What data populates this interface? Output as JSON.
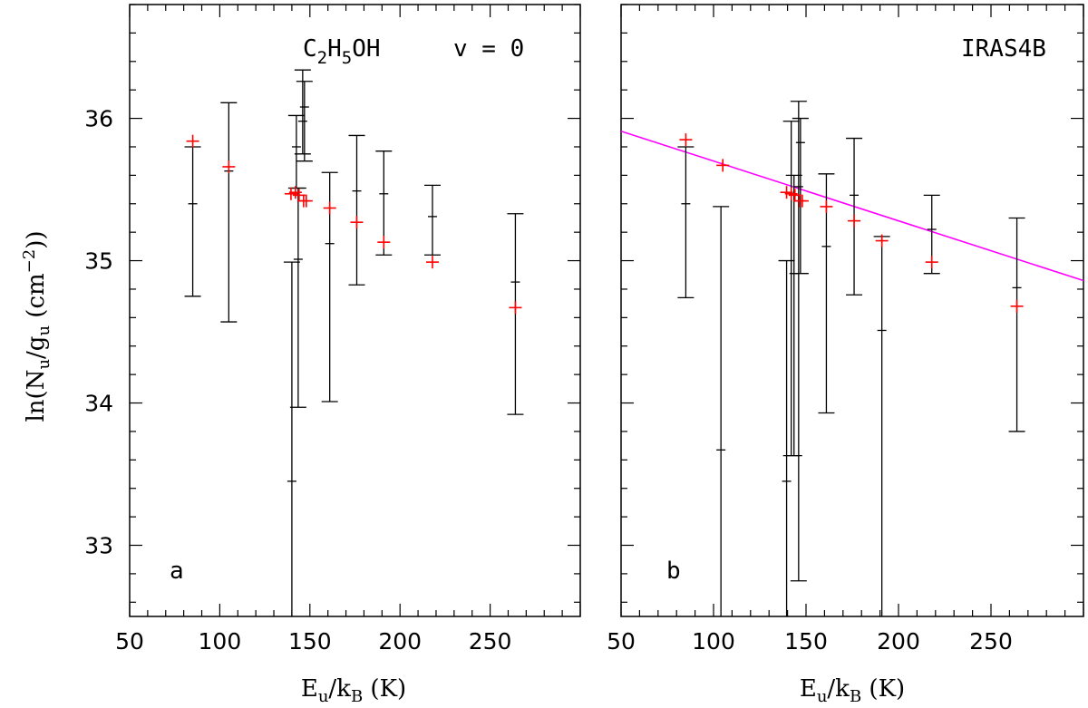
{
  "chart_data": [
    {
      "type": "scatter",
      "panel_letter": "a",
      "annotation_molecule": "C2H5OH",
      "annotation_state": "v = 0",
      "xlabel": "Eu/kB (K)",
      "ylabel": "ln(Nu/gu (cm^-2))",
      "xlim": [
        50,
        300
      ],
      "ylim": [
        32.5,
        36.8
      ],
      "xticks": [
        50,
        100,
        150,
        200,
        250
      ],
      "yticks": [
        33,
        34,
        35,
        36
      ],
      "observed": [
        {
          "x": 85,
          "y": 35.4,
          "lo": 34.75,
          "hi": 35.8
        },
        {
          "x": 105,
          "y": 35.63,
          "lo": 34.57,
          "hi": 36.11
        },
        {
          "x": 140,
          "y": 33.45,
          "lo": 32.5,
          "hi": 34.99
        },
        {
          "x": 142.5,
          "y": 35.8,
          "lo": 35.51,
          "hi": 36.02
        },
        {
          "x": 143.5,
          "y": 35.01,
          "lo": 33.97,
          "hi": 35.51
        },
        {
          "x": 146,
          "y": 35.98,
          "lo": 35.75,
          "hi": 36.34
        },
        {
          "x": 147,
          "y": 36.08,
          "lo": 35.7,
          "hi": 36.26
        },
        {
          "x": 161,
          "y": 35.12,
          "lo": 34.01,
          "hi": 35.62
        },
        {
          "x": 176,
          "y": 35.49,
          "lo": 34.83,
          "hi": 35.88
        },
        {
          "x": 191,
          "y": 35.47,
          "lo": 35.04,
          "hi": 35.77
        },
        {
          "x": 218,
          "y": 35.31,
          "lo": 35.04,
          "hi": 35.53
        },
        {
          "x": 264,
          "y": 34.85,
          "lo": 33.92,
          "hi": 35.33
        }
      ],
      "model": [
        {
          "x": 85,
          "y": 35.84
        },
        {
          "x": 105,
          "y": 35.66
        },
        {
          "x": 139.5,
          "y": 35.47
        },
        {
          "x": 142,
          "y": 35.48
        },
        {
          "x": 144,
          "y": 35.46
        },
        {
          "x": 146.5,
          "y": 35.42
        },
        {
          "x": 148,
          "y": 35.42
        },
        {
          "x": 161,
          "y": 35.37
        },
        {
          "x": 176,
          "y": 35.27
        },
        {
          "x": 191,
          "y": 35.13
        },
        {
          "x": 218,
          "y": 34.99
        },
        {
          "x": 264,
          "y": 34.67
        }
      ]
    },
    {
      "type": "scatter",
      "panel_letter": "b",
      "annotation_source": "IRAS4B",
      "xlabel": "Eu/kB (K)",
      "xlim": [
        50,
        300
      ],
      "ylim": [
        32.5,
        36.8
      ],
      "xticks": [
        50,
        100,
        150,
        200,
        250
      ],
      "yticks": [
        33,
        34,
        35,
        36
      ],
      "fit_line": {
        "x0": 50,
        "y0": 35.91,
        "x1": 300,
        "y1": 34.86
      },
      "observed": [
        {
          "x": 85,
          "y": 35.4,
          "lo": 34.74,
          "hi": 35.8
        },
        {
          "x": 104,
          "y": 33.67,
          "lo": 32.5,
          "hi": 35.38
        },
        {
          "x": 139.5,
          "y": 33.45,
          "lo": 32.5,
          "hi": 35.0
        },
        {
          "x": 142,
          "y": 35.47,
          "lo": 33.63,
          "hi": 35.98
        },
        {
          "x": 143.5,
          "y": 34.91,
          "lo": 33.63,
          "hi": 35.6
        },
        {
          "x": 146,
          "y": 35.52,
          "lo": 32.75,
          "hi": 36.12
        },
        {
          "x": 147,
          "y": 35.83,
          "lo": 34.91,
          "hi": 36.0
        },
        {
          "x": 161,
          "y": 35.1,
          "lo": 33.93,
          "hi": 35.61
        },
        {
          "x": 176,
          "y": 35.46,
          "lo": 34.76,
          "hi": 35.86
        },
        {
          "x": 191,
          "y": 34.51,
          "lo": 32.5,
          "hi": 35.17
        },
        {
          "x": 218,
          "y": 35.22,
          "lo": 34.91,
          "hi": 35.46
        },
        {
          "x": 264,
          "y": 34.81,
          "lo": 33.8,
          "hi": 35.3
        }
      ],
      "model": [
        {
          "x": 85,
          "y": 35.85
        },
        {
          "x": 105,
          "y": 35.67
        },
        {
          "x": 139.5,
          "y": 35.48
        },
        {
          "x": 142,
          "y": 35.47
        },
        {
          "x": 144,
          "y": 35.46
        },
        {
          "x": 146.5,
          "y": 35.42
        },
        {
          "x": 148,
          "y": 35.42
        },
        {
          "x": 161,
          "y": 35.38
        },
        {
          "x": 176,
          "y": 35.28
        },
        {
          "x": 191,
          "y": 35.14
        },
        {
          "x": 218,
          "y": 34.99
        },
        {
          "x": 264,
          "y": 34.68
        }
      ]
    }
  ],
  "colors": {
    "observed": "#000000",
    "model": "#ff0000",
    "fit": "#ff00ff"
  },
  "labels": {
    "ylabel_prefix": "ln(N",
    "ylabel_sub_u": "u",
    "ylabel_mid": "/g",
    "ylabel_unit": " (cm",
    "ylabel_exp": "−2",
    "ylabel_close": "))",
    "xlabel_E": "E",
    "xlabel_sub_u": "u",
    "xlabel_mid": "/k",
    "xlabel_sub_B": "B",
    "xlabel_unit": " (K)",
    "mol_C": "C",
    "mol_2": "2",
    "mol_H": "H",
    "mol_5": "5",
    "mol_OH": "OH",
    "state": "v = 0",
    "source": "IRAS4B",
    "panel_a": "a",
    "panel_b": "b"
  }
}
